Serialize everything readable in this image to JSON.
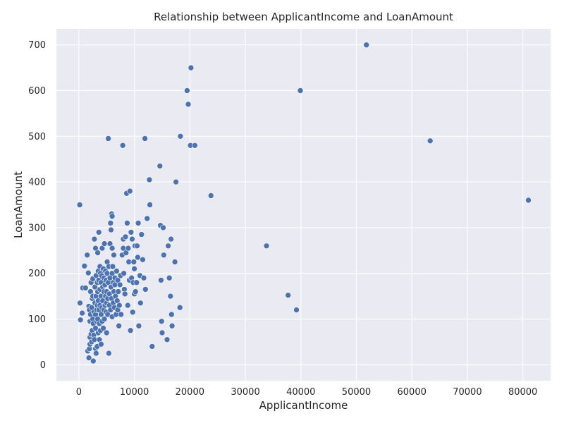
{
  "chart_data": {
    "type": "scatter",
    "title": "Relationship between ApplicantIncome and LoanAmount",
    "xlabel": "ApplicantIncome",
    "ylabel": "LoanAmount",
    "xlim": [
      -4050,
      85000
    ],
    "ylim": [
      -35,
      735
    ],
    "xticks": [
      0,
      10000,
      20000,
      30000,
      40000,
      50000,
      60000,
      70000,
      80000
    ],
    "xtick_labels": [
      "0",
      "10000",
      "20000",
      "30000",
      "40000",
      "50000",
      "60000",
      "70000",
      "80000"
    ],
    "yticks": [
      0,
      100,
      200,
      300,
      400,
      500,
      600,
      700
    ],
    "ytick_labels": [
      "0",
      "100",
      "200",
      "300",
      "400",
      "500",
      "600",
      "700"
    ],
    "grid": true,
    "point_color": "#4c72b0",
    "background_color": "#eaeaf2",
    "points": [
      [
        150,
        350
      ],
      [
        210,
        135
      ],
      [
        300,
        98
      ],
      [
        600,
        113
      ],
      [
        700,
        168
      ],
      [
        1000,
        216
      ],
      [
        1200,
        168
      ],
      [
        1500,
        240
      ],
      [
        1600,
        30
      ],
      [
        1700,
        201
      ],
      [
        1800,
        15
      ],
      [
        1800,
        128
      ],
      [
        1900,
        120
      ],
      [
        1900,
        35
      ],
      [
        2000,
        95
      ],
      [
        2000,
        60
      ],
      [
        2000,
        45
      ],
      [
        2100,
        110
      ],
      [
        2100,
        160
      ],
      [
        2200,
        180
      ],
      [
        2200,
        67
      ],
      [
        2300,
        125
      ],
      [
        2300,
        50
      ],
      [
        2400,
        145
      ],
      [
        2400,
        75
      ],
      [
        2500,
        100
      ],
      [
        2500,
        150
      ],
      [
        2500,
        188
      ],
      [
        2600,
        8
      ],
      [
        2600,
        90
      ],
      [
        2700,
        115
      ],
      [
        2700,
        65
      ],
      [
        2800,
        275
      ],
      [
        2800,
        55
      ],
      [
        2900,
        135
      ],
      [
        2900,
        170
      ],
      [
        3000,
        255
      ],
      [
        3000,
        110
      ],
      [
        3000,
        80
      ],
      [
        3000,
        35
      ],
      [
        3100,
        195
      ],
      [
        3100,
        150
      ],
      [
        3100,
        25
      ],
      [
        3200,
        120
      ],
      [
        3200,
        95
      ],
      [
        3300,
        180
      ],
      [
        3300,
        130
      ],
      [
        3300,
        40
      ],
      [
        3400,
        245
      ],
      [
        3400,
        160
      ],
      [
        3400,
        100
      ],
      [
        3500,
        205
      ],
      [
        3500,
        70
      ],
      [
        3500,
        140
      ],
      [
        3600,
        290
      ],
      [
        3600,
        120
      ],
      [
        3600,
        185
      ],
      [
        3700,
        90
      ],
      [
        3700,
        55
      ],
      [
        3800,
        165
      ],
      [
        3800,
        215
      ],
      [
        3800,
        130
      ],
      [
        3900,
        200
      ],
      [
        3900,
        75
      ],
      [
        4000,
        150
      ],
      [
        4000,
        110
      ],
      [
        4000,
        180
      ],
      [
        4000,
        45
      ],
      [
        4100,
        125
      ],
      [
        4100,
        195
      ],
      [
        4200,
        255
      ],
      [
        4200,
        95
      ],
      [
        4300,
        170
      ],
      [
        4300,
        140
      ],
      [
        4400,
        210
      ],
      [
        4400,
        80
      ],
      [
        4500,
        160
      ],
      [
        4500,
        120
      ],
      [
        4500,
        190
      ],
      [
        4600,
        265
      ],
      [
        4600,
        100
      ],
      [
        4700,
        175
      ],
      [
        4700,
        130
      ],
      [
        4800,
        150
      ],
      [
        4800,
        205
      ],
      [
        4900,
        115
      ],
      [
        4900,
        185
      ],
      [
        5000,
        160
      ],
      [
        5000,
        135
      ],
      [
        5000,
        70
      ],
      [
        5100,
        200
      ],
      [
        5100,
        225
      ],
      [
        5200,
        145
      ],
      [
        5200,
        110
      ],
      [
        5300,
        180
      ],
      [
        5300,
        495
      ],
      [
        5400,
        25
      ],
      [
        5400,
        215
      ],
      [
        5500,
        155
      ],
      [
        5500,
        130
      ],
      [
        5600,
        190
      ],
      [
        5600,
        265
      ],
      [
        5700,
        310
      ],
      [
        5700,
        120
      ],
      [
        5800,
        295
      ],
      [
        5800,
        170
      ],
      [
        5900,
        330
      ],
      [
        5900,
        145
      ],
      [
        6000,
        325
      ],
      [
        6000,
        255
      ],
      [
        6000,
        200
      ],
      [
        6000,
        105
      ],
      [
        6100,
        215
      ],
      [
        6200,
        180
      ],
      [
        6200,
        135
      ],
      [
        6300,
        240
      ],
      [
        6300,
        160
      ],
      [
        6400,
        125
      ],
      [
        6500,
        190
      ],
      [
        6500,
        175
      ],
      [
        6600,
        150
      ],
      [
        6700,
        110
      ],
      [
        6800,
        205
      ],
      [
        6900,
        140
      ],
      [
        7000,
        185
      ],
      [
        7000,
        120
      ],
      [
        7100,
        160
      ],
      [
        7200,
        85
      ],
      [
        7300,
        130
      ],
      [
        7400,
        175
      ],
      [
        7500,
        195
      ],
      [
        7600,
        110
      ],
      [
        7800,
        240
      ],
      [
        7900,
        480
      ],
      [
        8000,
        255
      ],
      [
        8000,
        275
      ],
      [
        8100,
        200
      ],
      [
        8200,
        165
      ],
      [
        8300,
        155
      ],
      [
        8400,
        280
      ],
      [
        8500,
        245
      ],
      [
        8600,
        375
      ],
      [
        8700,
        310
      ],
      [
        8800,
        130
      ],
      [
        8900,
        255
      ],
      [
        9000,
        225
      ],
      [
        9100,
        185
      ],
      [
        9200,
        380
      ],
      [
        9300,
        75
      ],
      [
        9400,
        290
      ],
      [
        9500,
        190
      ],
      [
        9600,
        275
      ],
      [
        9700,
        115
      ],
      [
        9800,
        180
      ],
      [
        9900,
        225
      ],
      [
        10000,
        155
      ],
      [
        10000,
        210
      ],
      [
        10100,
        260
      ],
      [
        10200,
        160
      ],
      [
        10400,
        180
      ],
      [
        10500,
        260
      ],
      [
        10600,
        235
      ],
      [
        10700,
        310
      ],
      [
        10800,
        85
      ],
      [
        11000,
        195
      ],
      [
        11100,
        135
      ],
      [
        11300,
        285
      ],
      [
        11500,
        230
      ],
      [
        11700,
        190
      ],
      [
        11900,
        495
      ],
      [
        12000,
        165
      ],
      [
        12300,
        320
      ],
      [
        12700,
        405
      ],
      [
        12800,
        350
      ],
      [
        13200,
        40
      ],
      [
        14600,
        435
      ],
      [
        14700,
        305
      ],
      [
        14800,
        185
      ],
      [
        14900,
        95
      ],
      [
        15000,
        70
      ],
      [
        15200,
        300
      ],
      [
        15300,
        240
      ],
      [
        15900,
        55
      ],
      [
        16100,
        260
      ],
      [
        16300,
        190
      ],
      [
        16500,
        150
      ],
      [
        16600,
        275
      ],
      [
        16700,
        110
      ],
      [
        16800,
        85
      ],
      [
        17300,
        225
      ],
      [
        17500,
        400
      ],
      [
        18200,
        125
      ],
      [
        18300,
        500
      ],
      [
        19500,
        600
      ],
      [
        19700,
        570
      ],
      [
        20100,
        480
      ],
      [
        20200,
        650
      ],
      [
        20900,
        480
      ],
      [
        23800,
        370
      ],
      [
        33800,
        260
      ],
      [
        37700,
        152
      ],
      [
        39200,
        120
      ],
      [
        39900,
        600
      ],
      [
        51800,
        700
      ],
      [
        63300,
        490
      ],
      [
        81000,
        360
      ]
    ]
  }
}
